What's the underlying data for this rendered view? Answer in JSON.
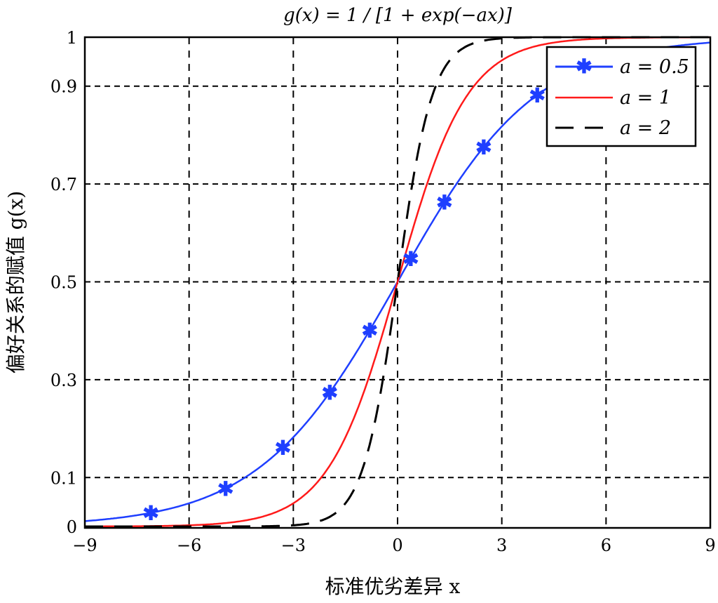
{
  "chart_data": {
    "type": "line",
    "title": "g(x) = 1 / [1 + exp(−ax)]",
    "xlabel": "标准优劣差异 x",
    "ylabel": "偏好关系的赋值 g(x)",
    "xlim": [
      -9,
      9
    ],
    "ylim": [
      0,
      1
    ],
    "xticks": [
      -9,
      -6,
      -3,
      0,
      3,
      6,
      9
    ],
    "xtick_labels": [
      "−9",
      "−6",
      "−3",
      "0",
      "3",
      "6",
      "9"
    ],
    "yticks": [
      0,
      0.1,
      0.3,
      0.5,
      0.7,
      0.9,
      1
    ],
    "ytick_labels": [
      "0",
      "0.1",
      "0.3",
      "0.5",
      "0.7",
      "0.9",
      "1"
    ],
    "grid": true,
    "legend_position": "top-right",
    "series": [
      {
        "name": "a=0.5",
        "a": 0.5,
        "color": "#1f3fff",
        "style": "solid",
        "marker": "asterisk",
        "marker_x": [
          -7.1,
          -4.95,
          -3.3,
          -1.95,
          -0.8,
          0.38,
          1.35,
          2.48,
          4.02
        ]
      },
      {
        "name": "a=1",
        "a": 1,
        "color": "#ff1a1a",
        "style": "solid",
        "marker": "none"
      },
      {
        "name": "a=2",
        "a": 2,
        "color": "#000000",
        "style": "dashed",
        "marker": "none"
      }
    ],
    "legend": [
      "a = 0.5",
      "a = 1",
      "a = 2"
    ]
  }
}
